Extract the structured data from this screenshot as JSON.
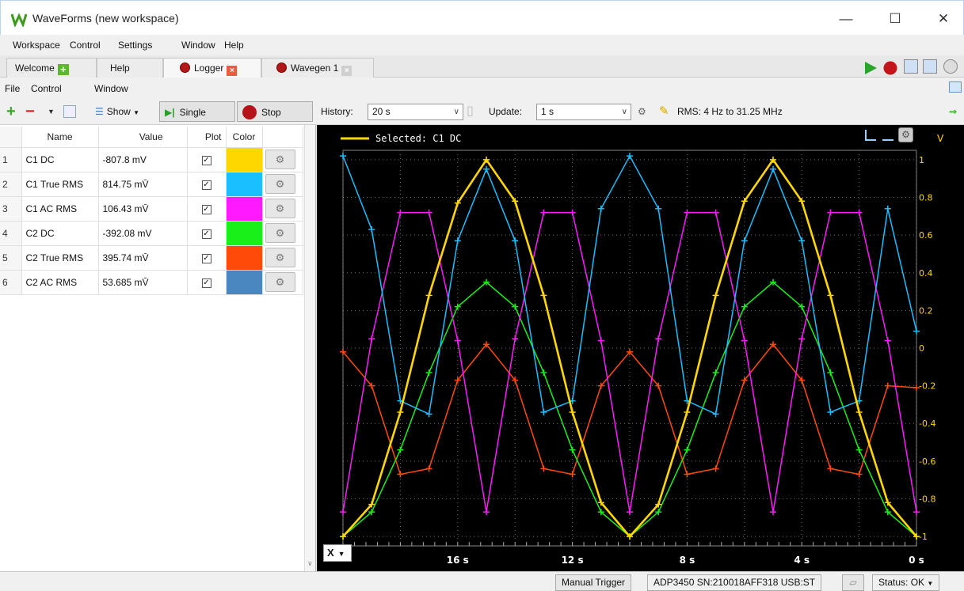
{
  "window": {
    "title": "WaveForms (new workspace)"
  },
  "menu": [
    "Workspace",
    "Control",
    "Settings",
    "Window",
    "Help"
  ],
  "tabs": [
    {
      "label": "Welcome"
    },
    {
      "label": "Help"
    },
    {
      "label": "Logger"
    },
    {
      "label": "Wavegen 1"
    }
  ],
  "submenu": [
    "File",
    "Control",
    "Window"
  ],
  "toolbar": {
    "show_label": "Show",
    "single_label": "Single",
    "stop_label": "Stop",
    "history_label": "History:",
    "history_value": "20 s",
    "update_label": "Update:",
    "update_value": "1 s",
    "rms_text": "RMS: 4 Hz to 31.25 MHz"
  },
  "table": {
    "headers": [
      "Name",
      "Value",
      "Plot",
      "Color"
    ],
    "rows": [
      {
        "idx": "1",
        "name": "C1 DC",
        "value": "-807.8 mV",
        "color": "#ffd700"
      },
      {
        "idx": "2",
        "name": "C1 True RMS",
        "value": "814.75 mV̄",
        "color": "#19bfff"
      },
      {
        "idx": "3",
        "name": "C1 AC RMS",
        "value": "106.43 mV̄",
        "color": "#ff19ff"
      },
      {
        "idx": "4",
        "name": "C2 DC",
        "value": "-392.08 mV",
        "color": "#19f019"
      },
      {
        "idx": "5",
        "name": "C2 True RMS",
        "value": "395.74 mV̄",
        "color": "#ff4a0a"
      },
      {
        "idx": "6",
        "name": "C2 AC RMS",
        "value": "53.685 mV̄",
        "color": "#4a86c0"
      }
    ]
  },
  "plot": {
    "selected_label": "Selected: C1 DC",
    "unit": "V",
    "x_button": "X"
  },
  "chart_data": {
    "type": "line",
    "xlabel": "",
    "ylabel": "V",
    "ylim": [
      -1.05,
      1.05
    ],
    "xlim": [
      20,
      0
    ],
    "x_ticks": [
      "16 s",
      "12 s",
      "8 s",
      "4 s",
      "0 s"
    ],
    "x_tick_values": [
      16,
      12,
      8,
      4,
      0
    ],
    "y_ticks": [
      1,
      0.8,
      0.6,
      0.4,
      0.2,
      0,
      -0.2,
      -0.4,
      -0.6,
      -0.8,
      -1
    ],
    "x": [
      20,
      19,
      18,
      17,
      16,
      15,
      14,
      13,
      12,
      11,
      10,
      9,
      8,
      7,
      6,
      5,
      4,
      3,
      2,
      1,
      0
    ],
    "series": [
      {
        "name": "C1 DC",
        "color": "#ffd700",
        "width": 2.6,
        "values": [
          -1.0,
          -0.83,
          -0.34,
          0.28,
          0.77,
          1.0,
          0.78,
          0.28,
          -0.34,
          -0.82,
          -1.0,
          -0.83,
          -0.34,
          0.28,
          0.78,
          1.0,
          0.78,
          0.28,
          -0.34,
          -0.82,
          -1.0
        ]
      },
      {
        "name": "C1 True RMS",
        "color": "#19bfff",
        "width": 1.5,
        "values": [
          1.02,
          0.63,
          -0.28,
          -0.35,
          0.57,
          0.95,
          0.57,
          -0.34,
          -0.28,
          0.74,
          1.02,
          0.74,
          -0.28,
          -0.35,
          0.57,
          0.95,
          0.57,
          -0.34,
          -0.28,
          0.74,
          0.09
        ]
      },
      {
        "name": "C1 AC RMS",
        "color": "#ff19ff",
        "width": 1.5,
        "values": [
          -0.87,
          0.05,
          0.72,
          0.72,
          0.04,
          -0.87,
          0.05,
          0.72,
          0.72,
          0.04,
          -0.87,
          0.05,
          0.72,
          0.72,
          0.04,
          -0.87,
          0.05,
          0.72,
          0.72,
          0.04,
          -0.87
        ]
      },
      {
        "name": "C2 DC",
        "color": "#19f019",
        "width": 1.5,
        "values": [
          -1.0,
          -0.87,
          -0.54,
          -0.13,
          0.22,
          0.35,
          0.22,
          -0.13,
          -0.54,
          -0.87,
          -1.0,
          -0.87,
          -0.54,
          -0.13,
          0.22,
          0.35,
          0.22,
          -0.13,
          -0.54,
          -0.87,
          -1.0
        ]
      },
      {
        "name": "C2 True RMS",
        "color": "#ff4a0a",
        "width": 1.5,
        "values": [
          -0.02,
          -0.2,
          -0.67,
          -0.64,
          -0.17,
          0.02,
          -0.17,
          -0.64,
          -0.67,
          -0.2,
          -0.02,
          -0.2,
          -0.67,
          -0.64,
          -0.17,
          0.02,
          -0.17,
          -0.64,
          -0.67,
          -0.2,
          -0.21
        ]
      }
    ]
  },
  "statusbar": {
    "trigger": "Manual Trigger",
    "device": "ADP3450 SN:210018AFF318 USB:ST",
    "status": "Status: OK"
  }
}
